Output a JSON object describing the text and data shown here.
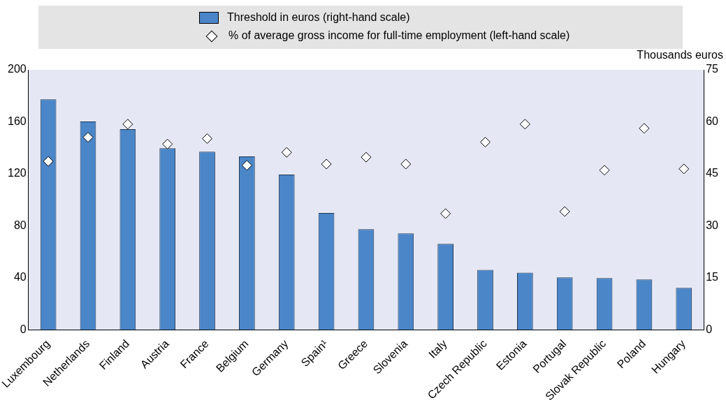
{
  "chart_data": {
    "type": "bar",
    "y2label": "Thousands euros",
    "categories": [
      "Luxembourg",
      "Netherlands",
      "Finland",
      "Austria",
      "France",
      "Belgium",
      "Germany",
      "Spain¹",
      "Greece",
      "Slovenia",
      "Italy",
      "Czech Republic",
      "Estonia",
      "Portugal",
      "Slovak Republic",
      "Poland",
      "Hungary"
    ],
    "series": [
      {
        "name": "Threshold in euros (right-hand scale)",
        "axis": "y2",
        "color": "#4a86c8",
        "values": [
          66.5,
          60.1,
          57.9,
          52.4,
          51.4,
          50.0,
          44.8,
          33.7,
          29.0,
          27.8,
          24.8,
          17.3,
          16.5,
          15.1,
          14.9,
          14.5,
          12.1
        ]
      },
      {
        "name": "% of average gross income for full-time employment (left-hand scale)",
        "type": "scatter",
        "color": "#ffffff",
        "x": [
          "Luxembourg",
          "Netherlands",
          "Finland",
          "Austria",
          "France",
          "Belgium",
          "Germany",
          "Spain¹",
          "Greece",
          "Slovenia",
          "Italy",
          "Czech Republic",
          "Estonia",
          "Portugal",
          "Slovak Republic",
          "Poland",
          "Hungary"
        ],
        "values": [
          129.6,
          148.1,
          158.2,
          142.9,
          147.1,
          126.5,
          136.5,
          127.5,
          132.8,
          127.5,
          89.4,
          144.4,
          158.2,
          91.0,
          122.8,
          155.0,
          123.8
        ]
      }
    ],
    "ylim": [
      0,
      200
    ],
    "yticks": [
      0,
      40,
      80,
      120,
      160,
      200
    ],
    "y2lim": [
      0,
      75
    ],
    "y2ticks": [
      0,
      15,
      30,
      45,
      60,
      75
    ],
    "marker": "diamond",
    "legend": "top",
    "grid": false
  }
}
